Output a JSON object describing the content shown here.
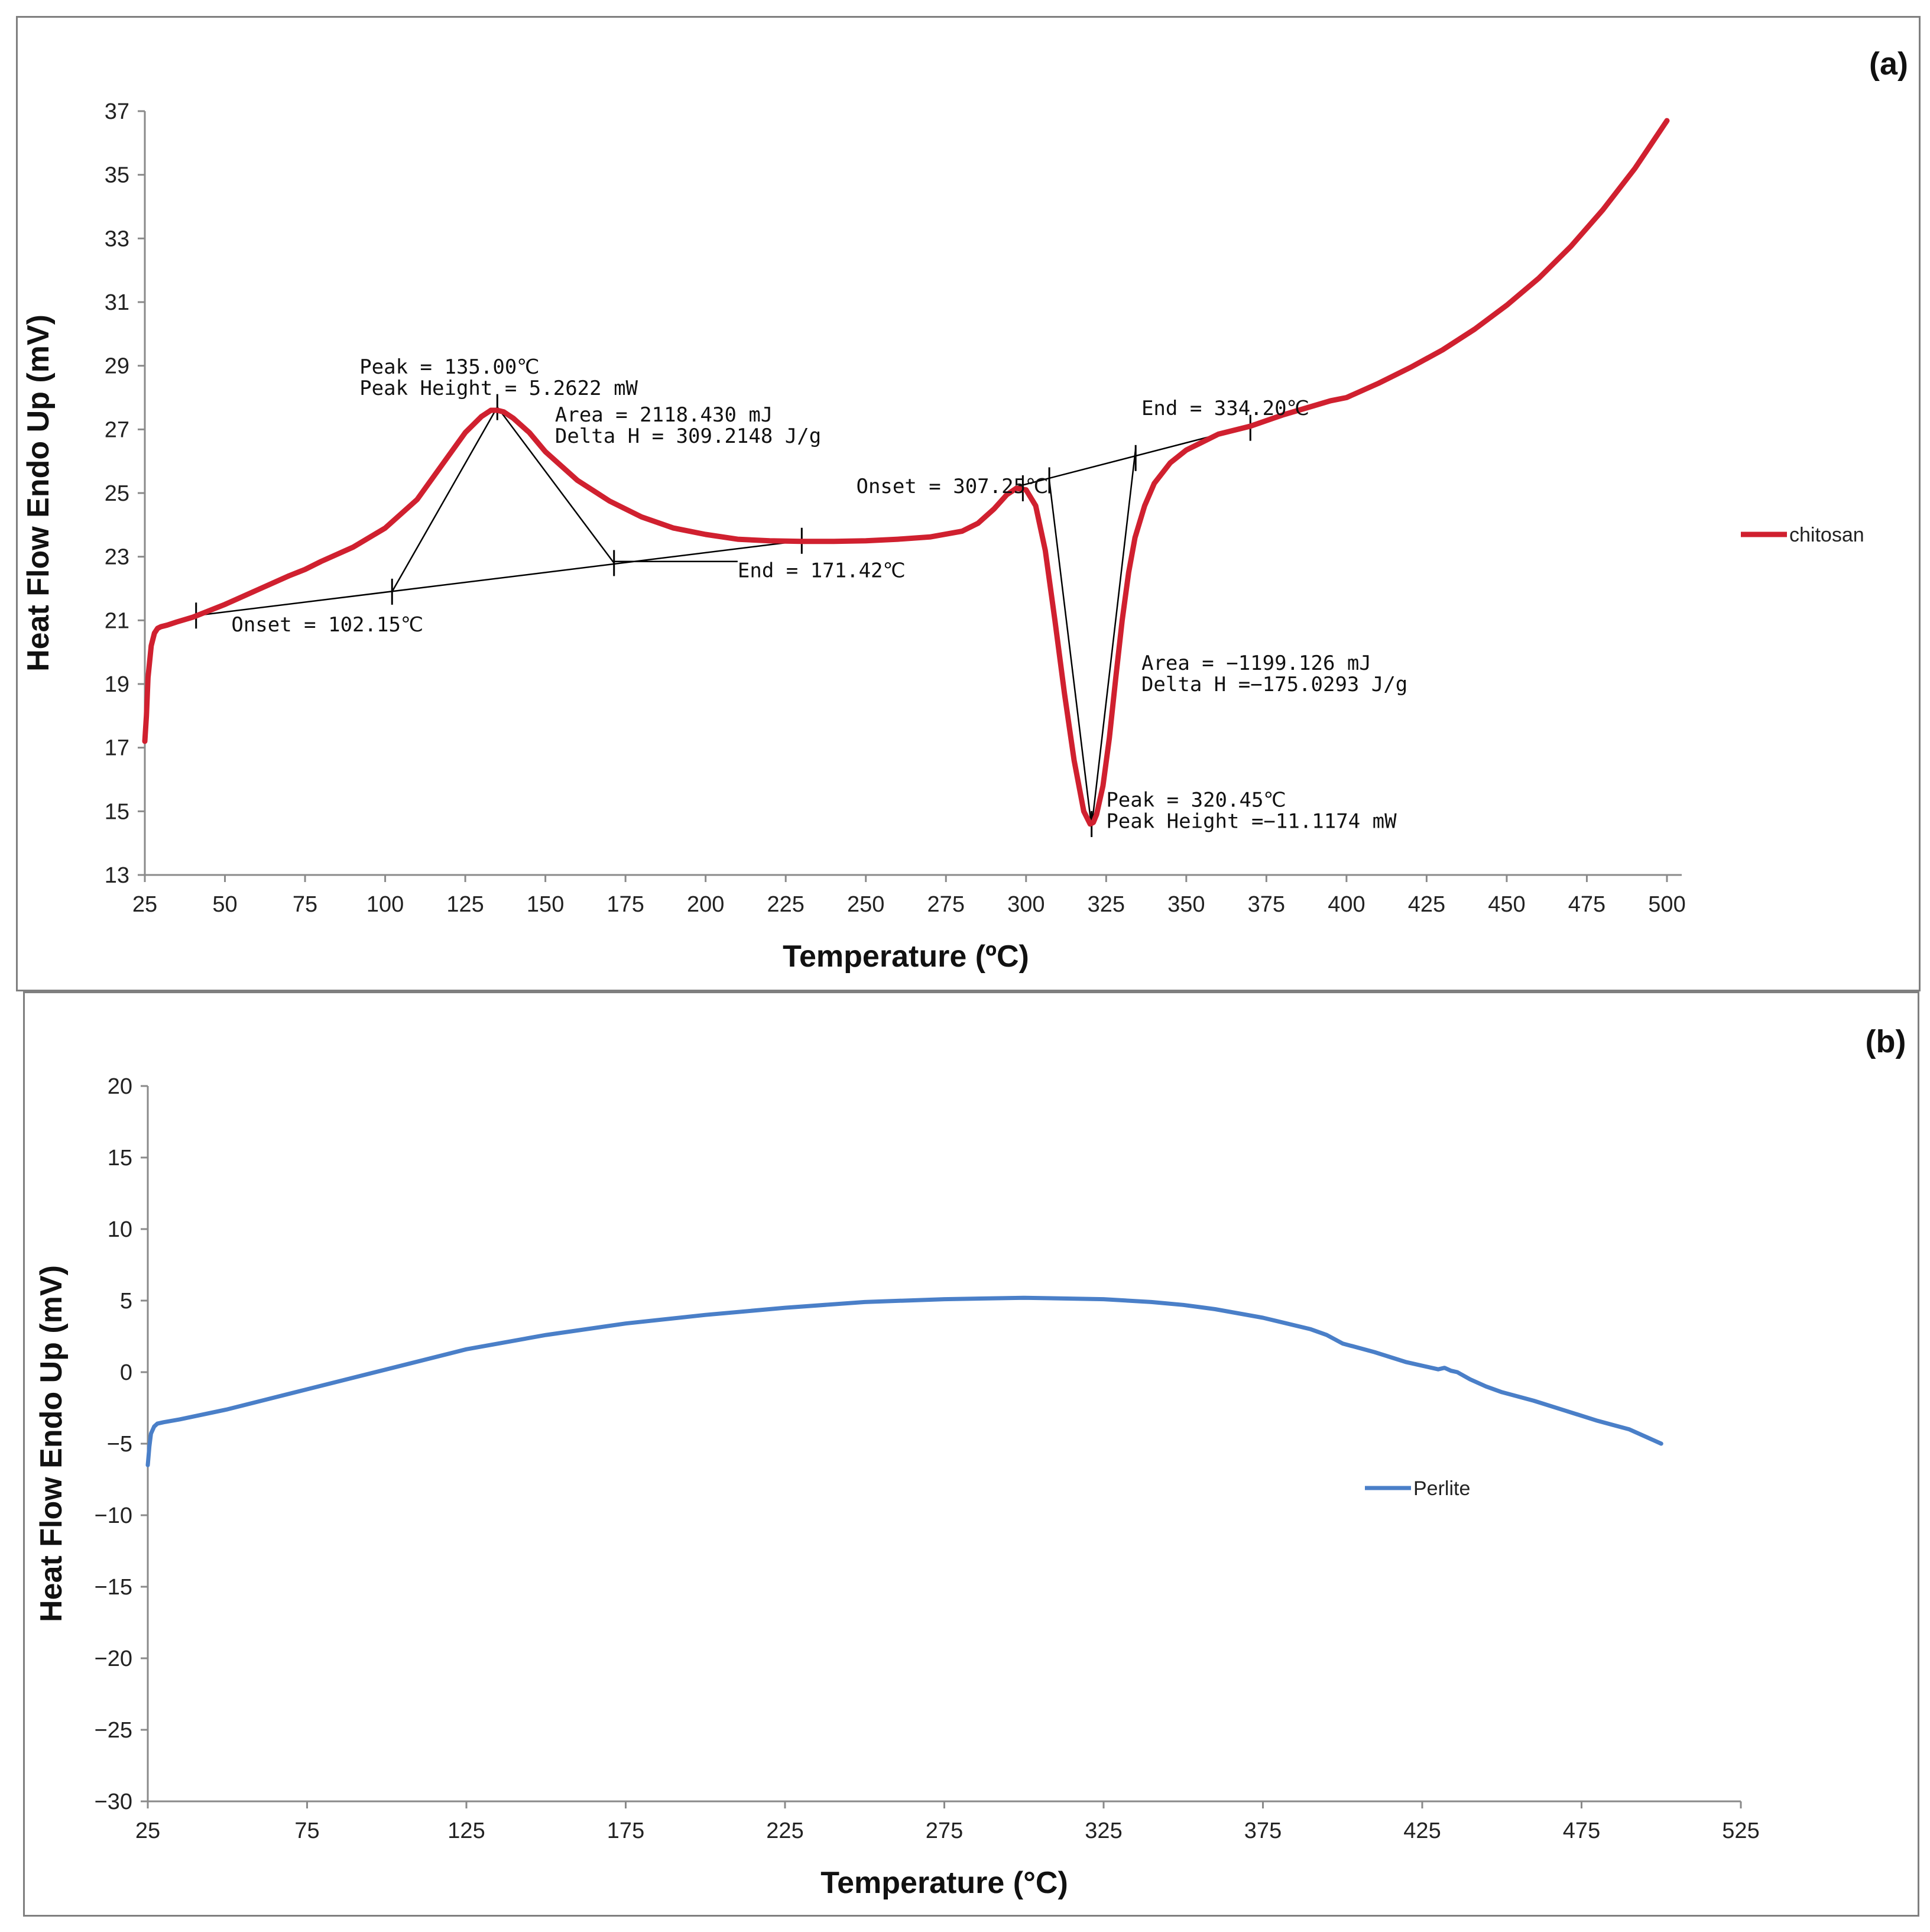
{
  "chart_data": [
    {
      "id": "a",
      "panel_label": "(a)",
      "type": "line",
      "xlabel": "Temperature (ºC)",
      "ylabel": "Heat Flow Endo Up (mV)",
      "xlim": [
        25,
        500
      ],
      "ylim": [
        13,
        37
      ],
      "xticks": [
        25,
        50,
        75,
        100,
        125,
        150,
        175,
        200,
        225,
        250,
        275,
        300,
        325,
        350,
        375,
        400,
        425,
        450,
        475,
        500
      ],
      "yticks": [
        13,
        15,
        17,
        19,
        21,
        23,
        25,
        27,
        29,
        31,
        33,
        35,
        37
      ],
      "legend_position": "right",
      "series": [
        {
          "name": "chitosan",
          "color": "#d0202f",
          "x": [
            25,
            25.5,
            26,
            27,
            28,
            29,
            30,
            32,
            35,
            40,
            50,
            60,
            70,
            75,
            80,
            90,
            100,
            110,
            120,
            125,
            130,
            133,
            135,
            137,
            140,
            145,
            150,
            160,
            170,
            180,
            190,
            200,
            210,
            220,
            230,
            240,
            250,
            260,
            270,
            280,
            285,
            290,
            294,
            297,
            300,
            303,
            306,
            309,
            312,
            315,
            318,
            320,
            321,
            322,
            324,
            326,
            328,
            330,
            332,
            334,
            337,
            340,
            345,
            350,
            360,
            370,
            380,
            390,
            395,
            400,
            410,
            420,
            430,
            440,
            450,
            460,
            470,
            480,
            490,
            500
          ],
          "y": [
            17.2,
            18.0,
            19.2,
            20.2,
            20.6,
            20.75,
            20.8,
            20.85,
            20.95,
            21.1,
            21.5,
            21.95,
            22.4,
            22.6,
            22.85,
            23.3,
            23.9,
            24.8,
            26.2,
            26.9,
            27.4,
            27.6,
            27.6,
            27.55,
            27.35,
            26.9,
            26.3,
            25.4,
            24.75,
            24.25,
            23.9,
            23.7,
            23.55,
            23.5,
            23.48,
            23.48,
            23.5,
            23.55,
            23.62,
            23.8,
            24.05,
            24.5,
            24.95,
            25.15,
            25.1,
            24.6,
            23.2,
            21.0,
            18.7,
            16.6,
            15.0,
            14.6,
            14.65,
            14.9,
            15.8,
            17.3,
            19.2,
            21.0,
            22.5,
            23.6,
            24.6,
            25.3,
            25.95,
            26.35,
            26.85,
            27.1,
            27.45,
            27.75,
            27.9,
            28.0,
            28.45,
            28.95,
            29.5,
            30.15,
            30.9,
            31.75,
            32.75,
            33.9,
            35.2,
            36.7
          ]
        }
      ],
      "baselines": [
        {
          "from": [
            41,
            21.15
          ],
          "to": [
            230,
            23.5
          ]
        },
        {
          "from": [
            297,
            25.2
          ],
          "to": [
            370,
            27.1
          ]
        }
      ],
      "tangents": [
        {
          "from": [
            102.15,
            21.9
          ],
          "to": [
            135.0,
            27.7
          ]
        },
        {
          "from": [
            135.0,
            27.7
          ],
          "to": [
            171.42,
            22.8
          ]
        },
        {
          "from": [
            171.42,
            22.85
          ],
          "to": [
            210,
            22.85
          ]
        },
        {
          "from": [
            307.25,
            25.4
          ],
          "to": [
            320.45,
            14.5
          ]
        },
        {
          "from": [
            320.45,
            14.5
          ],
          "to": [
            334.2,
            26.4
          ]
        }
      ],
      "markers": [
        [
          41,
          21.15
        ],
        [
          102.15,
          21.9
        ],
        [
          135.0,
          27.7
        ],
        [
          171.42,
          22.8
        ],
        [
          230,
          23.5
        ],
        [
          299,
          25.15
        ],
        [
          307.25,
          25.4
        ],
        [
          320.45,
          14.6
        ],
        [
          334.2,
          26.1
        ],
        [
          370,
          27.05
        ]
      ],
      "annotations": [
        {
          "lines": [
            "Peak = 135.00℃",
            "Peak Height = 5.2622 mW"
          ],
          "x": 92,
          "y": 28.75
        },
        {
          "lines": [
            "Area = 2118.430 mJ",
            "Delta H = 309.2148 J/g"
          ],
          "x": 153,
          "y": 27.25
        },
        {
          "lines": [
            "Onset = 102.15℃"
          ],
          "x": 52,
          "y": 20.65
        },
        {
          "lines": [
            "End = 171.42℃"
          ],
          "x": 210,
          "y": 22.35
        },
        {
          "lines": [
            "Onset = 307.25℃"
          ],
          "x": 247,
          "y": 25.0
        },
        {
          "lines": [
            "End = 334.20℃"
          ],
          "x": 336,
          "y": 27.45
        },
        {
          "lines": [
            "Area = −1199.126 mJ",
            "Delta H =−175.0293 J/g"
          ],
          "x": 336,
          "y": 19.45
        },
        {
          "lines": [
            "Peak = 320.45℃",
            "Peak Height =−11.1174 mW"
          ],
          "x": 325,
          "y": 15.15
        }
      ]
    },
    {
      "id": "b",
      "panel_label": "(b)",
      "type": "line",
      "xlabel": "Temperature (°C)",
      "ylabel": "Heat Flow Endo Up (mV)",
      "xlim": [
        25,
        525
      ],
      "ylim": [
        -30,
        20
      ],
      "xticks": [
        25,
        75,
        125,
        175,
        225,
        275,
        325,
        375,
        425,
        475,
        525
      ],
      "yticks": [
        20,
        15,
        10,
        5,
        0,
        -5,
        -10,
        -15,
        -20,
        -25,
        -30
      ],
      "ytick_labels": [
        "20",
        "15",
        "10",
        "5",
        "0",
        "−5",
        "−10",
        "−15",
        "−20",
        "−25",
        "−30"
      ],
      "legend_position": "right",
      "series": [
        {
          "name": "Perlite",
          "color": "#4a7fc8",
          "x": [
            25,
            25.5,
            26,
            27,
            28,
            30,
            35,
            50,
            75,
            100,
            125,
            150,
            175,
            200,
            225,
            250,
            275,
            300,
            325,
            340,
            350,
            360,
            375,
            390,
            395,
            400,
            410,
            420,
            430,
            432,
            434,
            436,
            440,
            445,
            450,
            460,
            470,
            480,
            490,
            500
          ],
          "y": [
            -6.5,
            -5.2,
            -4.3,
            -3.8,
            -3.6,
            -3.5,
            -3.3,
            -2.6,
            -1.2,
            0.2,
            1.6,
            2.6,
            3.4,
            4.0,
            4.5,
            4.9,
            5.1,
            5.2,
            5.1,
            4.9,
            4.7,
            4.4,
            3.8,
            3.0,
            2.6,
            2.0,
            1.4,
            0.7,
            0.2,
            0.3,
            0.1,
            0.0,
            -0.5,
            -1.0,
            -1.4,
            -2.0,
            -2.7,
            -3.4,
            -4.0,
            -5.0
          ]
        }
      ]
    }
  ]
}
